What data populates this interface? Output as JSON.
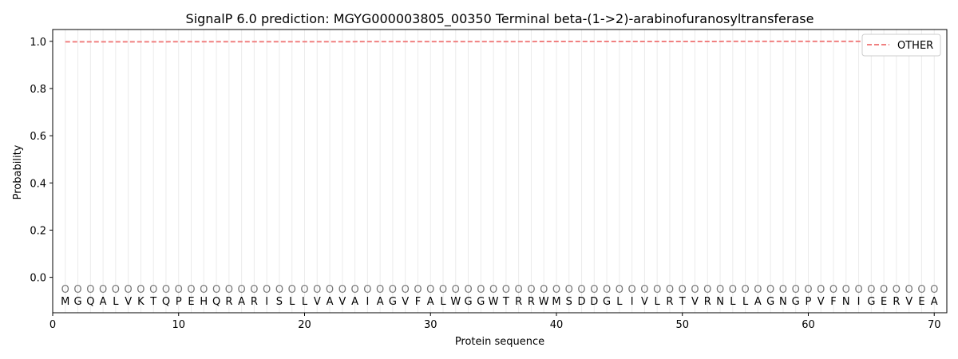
{
  "chart_data": {
    "type": "line",
    "title": "SignalP 6.0 prediction: MGYG000003805_00350 Terminal beta-(1->2)-arabinofuranosyltransferase",
    "xlabel": "Protein sequence",
    "ylabel": "Probability",
    "xlim": [
      0,
      71
    ],
    "ylim": [
      -0.15,
      1.05
    ],
    "x_ticks": [
      0,
      10,
      20,
      30,
      40,
      50,
      60,
      70
    ],
    "y_ticks": [
      0.0,
      0.2,
      0.4,
      0.6,
      0.8,
      1.0
    ],
    "x_tick_labels": [
      "0",
      "10",
      "20",
      "30",
      "40",
      "50",
      "60",
      "70"
    ],
    "y_tick_labels": [
      "0.0",
      "0.2",
      "0.4",
      "0.6",
      "0.8",
      "1.0"
    ],
    "grid": "vertical lines at each residue",
    "legend_position": "top-right",
    "sequence": [
      "M",
      "G",
      "Q",
      "A",
      "L",
      "V",
      "K",
      "T",
      "Q",
      "P",
      "E",
      "H",
      "Q",
      "R",
      "A",
      "R",
      "I",
      "S",
      "L",
      "L",
      "V",
      "A",
      "V",
      "A",
      "I",
      "A",
      "G",
      "V",
      "F",
      "A",
      "L",
      "W",
      "G",
      "G",
      "W",
      "T",
      "R",
      "R",
      "W",
      "M",
      "S",
      "D",
      "D",
      "G",
      "L",
      "I",
      "V",
      "L",
      "R",
      "T",
      "V",
      "R",
      "N",
      "L",
      "L",
      "A",
      "G",
      "N",
      "G",
      "P",
      "V",
      "F",
      "N",
      "I",
      "G",
      "E",
      "R",
      "V",
      "E",
      "A"
    ],
    "predicted_labels": [
      "O",
      "O",
      "O",
      "O",
      "O",
      "O",
      "O",
      "O",
      "O",
      "O",
      "O",
      "O",
      "O",
      "O",
      "O",
      "O",
      "O",
      "O",
      "O",
      "O",
      "O",
      "O",
      "O",
      "O",
      "O",
      "O",
      "O",
      "O",
      "O",
      "O",
      "O",
      "O",
      "O",
      "O",
      "O",
      "O",
      "O",
      "O",
      "O",
      "O",
      "O",
      "O",
      "O",
      "O",
      "O",
      "O",
      "O",
      "O",
      "O",
      "O",
      "O",
      "O",
      "O",
      "O",
      "O",
      "O",
      "O",
      "O",
      "O",
      "O",
      "O",
      "O",
      "O",
      "O",
      "O",
      "O",
      "O",
      "O",
      "O",
      "O"
    ],
    "series": [
      {
        "name": "OTHER",
        "color": "#f08080",
        "style": "dashed",
        "x_start": 1,
        "x_end": 70,
        "y_start": 0.998,
        "y_end": 1.0
      }
    ]
  }
}
